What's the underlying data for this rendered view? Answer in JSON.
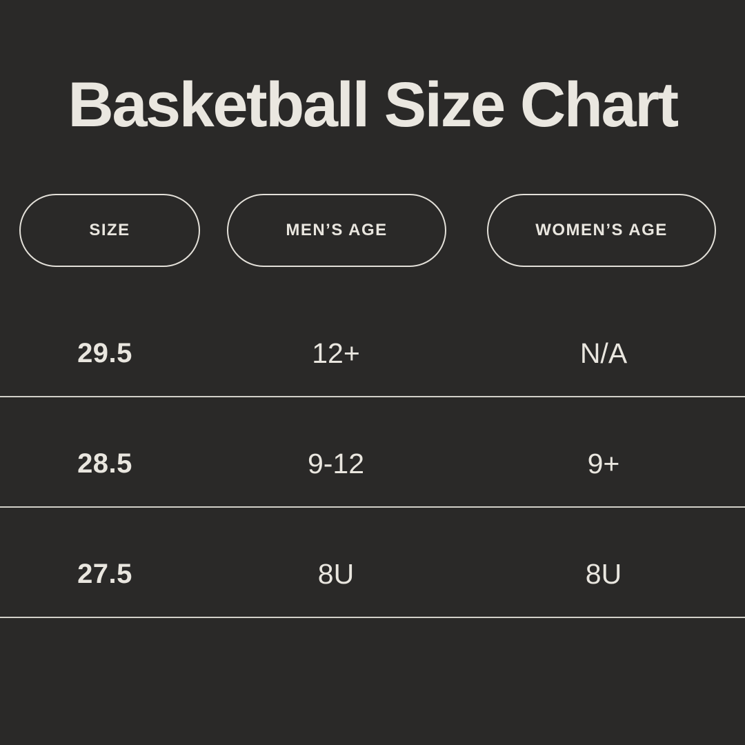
{
  "title": "Basketball Size Chart",
  "colors": {
    "background": "#2a2928",
    "text": "#eae7e0",
    "pill_border": "#e3e0d9",
    "divider": "#e6e3dc"
  },
  "chart_data": {
    "type": "table",
    "title": "Basketball Size Chart",
    "columns": [
      "SIZE",
      "MEN’S AGE",
      "WOMEN’S AGE"
    ],
    "rows": [
      [
        "29.5",
        "12+",
        "N/A"
      ],
      [
        "28.5",
        "9-12",
        "9+"
      ],
      [
        "27.5",
        "8U",
        "8U"
      ]
    ],
    "layout": {
      "header_style": "outlined-pill",
      "row_dividers": true,
      "grid": "horizontal-lines-only"
    }
  }
}
